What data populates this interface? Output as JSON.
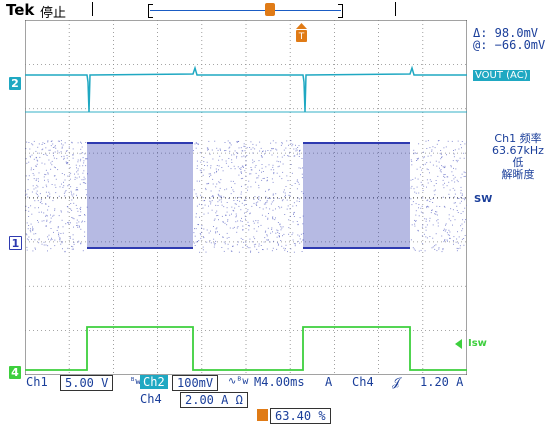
{
  "top": {
    "brand": "Tek",
    "state": "停止"
  },
  "readouts": {
    "delta": "Δ:  98.0mV",
    "at": "@: −66.0mV"
  },
  "labels": {
    "vout": "VOUT (AC)",
    "sw": "SW",
    "isw": "Isw"
  },
  "freq": {
    "line1": "Ch1 频率",
    "line2": "63.67kHz",
    "line3": "低",
    "line4": "解晰度"
  },
  "markers": {
    "ch2": "2",
    "ch1": "1",
    "ch4": "4"
  },
  "status": {
    "ch1_label": "Ch1",
    "ch1_scale": "5.00 V",
    "ch2_label": "Ch2",
    "ch2_scale": "100mV",
    "timebase": "M4.00ms",
    "trig_mode": "A",
    "trig_source": "Ch4",
    "trig_level": "1.20 A",
    "ch4_label": "Ch4",
    "ch4_scale": "2.00 A Ω",
    "trig_position": "63.40 %"
  },
  "colors": {
    "ch1": "#2e3ab0",
    "ch2": "#1fa8c2",
    "ch4": "#3dcf3d",
    "trigger": "#e07b16",
    "text": "#1a3e9a"
  }
}
